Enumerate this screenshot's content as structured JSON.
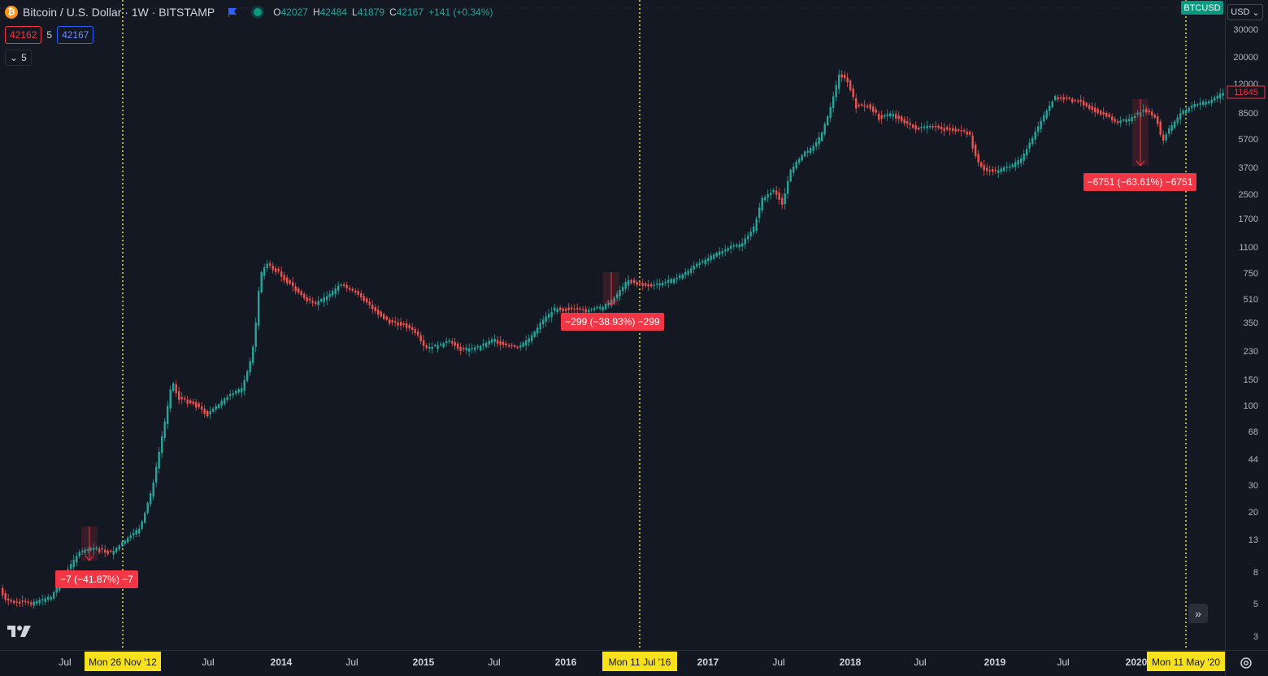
{
  "header": {
    "symbol_title": "Bitcoin / U.S. Dollar · 1W · BITSTAMP",
    "ohlc": [
      {
        "key": "O",
        "value": "42027"
      },
      {
        "key": "H",
        "value": "42484"
      },
      {
        "key": "L",
        "value": "41879"
      },
      {
        "key": "C",
        "value": "42167"
      },
      {
        "key": "",
        "value": "+141 (+0.34%)"
      }
    ],
    "bid": "42162",
    "spread": "5",
    "ask": "42167",
    "indicators_count": "5"
  },
  "currency_button": "USD",
  "symbol_tag": "BTCUSD",
  "last_price_label": "11645",
  "price_scale": [
    "30000",
    "20000",
    "12000",
    "8500",
    "5700",
    "3700",
    "2500",
    "1700",
    "1100",
    "750",
    "510",
    "350",
    "230",
    "150",
    "100",
    "68",
    "44",
    "30",
    "20",
    "13",
    "8",
    "5",
    "3"
  ],
  "time_scale": [
    "Jul",
    "Mon 26 Nov '12",
    "Jul",
    "2014",
    "Jul",
    "2015",
    "Jul",
    "2016",
    "Mon 11 Jul '16",
    "2017",
    "Jul",
    "2018",
    "Jul",
    "2019",
    "Jul",
    "2020",
    "Mon 11 May '20"
  ],
  "measurements": [
    {
      "label": "−7 (−41.87%) −7"
    },
    {
      "label": "−299 (−38.93%) −299"
    },
    {
      "label": "−6751 (−63.61%) −6751"
    }
  ],
  "colors": {
    "background": "#131722",
    "up": "#26a69a",
    "down": "#ef5350",
    "measure": "#f23645",
    "halving_line": "#f0e040",
    "halving_label_bg": "#f7e11c"
  },
  "icons": [
    "bitcoin-icon",
    "flag-icon",
    "chevron-down-icon",
    "tradingview-logo-icon",
    "double-chevron-right-icon",
    "gear-icon"
  ]
}
